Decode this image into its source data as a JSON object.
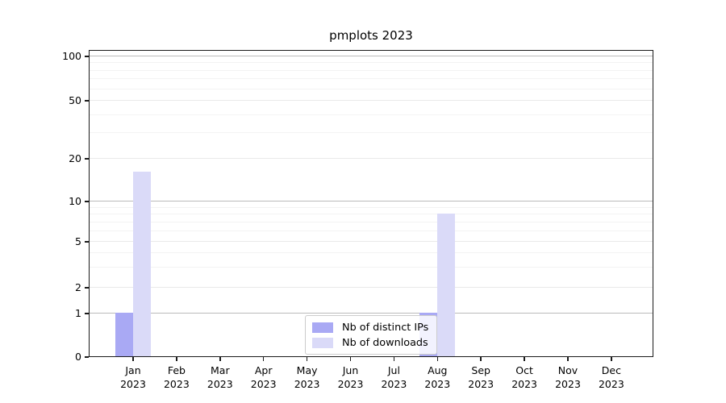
{
  "chart_data": {
    "type": "bar",
    "title": "pmplots 2023",
    "categories": [
      "Jan",
      "Feb",
      "Mar",
      "Apr",
      "May",
      "Jun",
      "Jul",
      "Aug",
      "Sep",
      "Oct",
      "Nov",
      "Dec"
    ],
    "category_year": "2023",
    "series": [
      {
        "name": "Nb of distinct IPs",
        "color": "#a9a9f4",
        "values": [
          1,
          0,
          0,
          0,
          0,
          0,
          0,
          1,
          0,
          0,
          0,
          0
        ]
      },
      {
        "name": "Nb of downloads",
        "color": "#dadaf8",
        "values": [
          16,
          0,
          0,
          0,
          0,
          0,
          0,
          8,
          0,
          0,
          0,
          0
        ]
      }
    ],
    "xlabel": "",
    "ylabel": "",
    "yticks": [
      0,
      1,
      2,
      5,
      10,
      20,
      50,
      100
    ],
    "minor_yticks": [
      3,
      4,
      6,
      7,
      8,
      9,
      30,
      40,
      60,
      70,
      80,
      90
    ],
    "ylim": [
      0,
      110
    ],
    "scale": "symlog",
    "grid": true,
    "legend_position": "lower center"
  },
  "colors": {
    "major_grid": "#bbbbbb",
    "mid_grid": "#e9e9e9",
    "minor_grid": "#f3f3f3",
    "spine": "#1a1a1a",
    "background": "#ffffff"
  }
}
